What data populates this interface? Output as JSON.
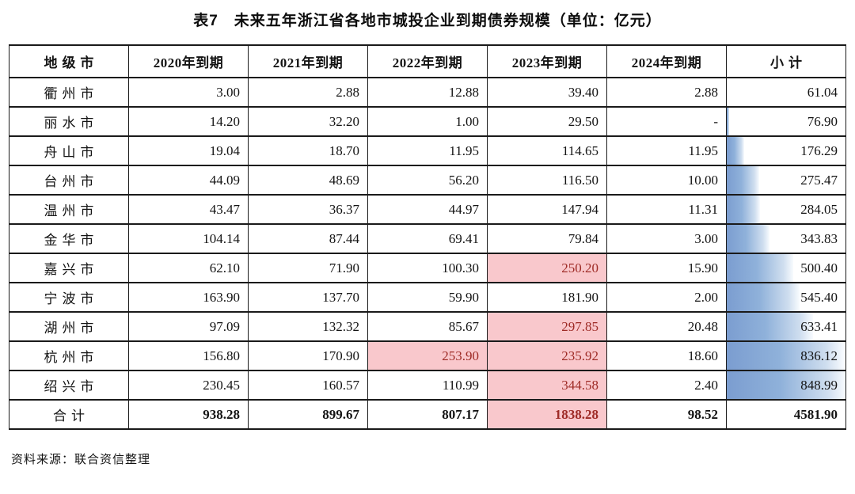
{
  "title": "表7　未来五年浙江省各地市城投企业到期债券规模（单位：亿元）",
  "source_note": "资料来源：联合资信整理",
  "colors": {
    "highlight_bg": "#f9c8cc",
    "highlight_text": "#9e2b26",
    "bar_gradient_start": "#7b9dd0",
    "bar_gradient_end": "#f8fbfe",
    "border": "#1a1a1a"
  },
  "table": {
    "columns": [
      "地级市",
      "2020年到期",
      "2021年到期",
      "2022年到期",
      "2023年到期",
      "2024年到期",
      "小计"
    ],
    "rows": [
      {
        "city": "衢州市",
        "values": [
          "3.00",
          "2.88",
          "12.88",
          "39.40",
          "2.88"
        ],
        "subtotal": "61.04",
        "subtotal_value": 61.04,
        "highlight_cols": []
      },
      {
        "city": "丽水市",
        "values": [
          "14.20",
          "32.20",
          "1.00",
          "29.50",
          "-"
        ],
        "subtotal": "76.90",
        "subtotal_value": 76.9,
        "highlight_cols": []
      },
      {
        "city": "舟山市",
        "values": [
          "19.04",
          "18.70",
          "11.95",
          "114.65",
          "11.95"
        ],
        "subtotal": "176.29",
        "subtotal_value": 176.29,
        "highlight_cols": []
      },
      {
        "city": "台州市",
        "values": [
          "44.09",
          "48.69",
          "56.20",
          "116.50",
          "10.00"
        ],
        "subtotal": "275.47",
        "subtotal_value": 275.47,
        "highlight_cols": []
      },
      {
        "city": "温州市",
        "values": [
          "43.47",
          "36.37",
          "44.97",
          "147.94",
          "11.31"
        ],
        "subtotal": "284.05",
        "subtotal_value": 284.05,
        "highlight_cols": []
      },
      {
        "city": "金华市",
        "values": [
          "104.14",
          "87.44",
          "69.41",
          "79.84",
          "3.00"
        ],
        "subtotal": "343.83",
        "subtotal_value": 343.83,
        "highlight_cols": []
      },
      {
        "city": "嘉兴市",
        "values": [
          "62.10",
          "71.90",
          "100.30",
          "250.20",
          "15.90"
        ],
        "subtotal": "500.40",
        "subtotal_value": 500.4,
        "highlight_cols": [
          3
        ]
      },
      {
        "city": "宁波市",
        "values": [
          "163.90",
          "137.70",
          "59.90",
          "181.90",
          "2.00"
        ],
        "subtotal": "545.40",
        "subtotal_value": 545.4,
        "highlight_cols": []
      },
      {
        "city": "湖州市",
        "values": [
          "97.09",
          "132.32",
          "85.67",
          "297.85",
          "20.48"
        ],
        "subtotal": "633.41",
        "subtotal_value": 633.41,
        "highlight_cols": [
          3
        ]
      },
      {
        "city": "杭州市",
        "values": [
          "156.80",
          "170.90",
          "253.90",
          "235.92",
          "18.60"
        ],
        "subtotal": "836.12",
        "subtotal_value": 836.12,
        "highlight_cols": [
          2,
          3
        ]
      },
      {
        "city": "绍兴市",
        "values": [
          "230.45",
          "160.57",
          "110.99",
          "344.58",
          "2.40"
        ],
        "subtotal": "848.99",
        "subtotal_value": 848.99,
        "highlight_cols": [
          3
        ]
      }
    ],
    "total": {
      "label": "合计",
      "values": [
        "938.28",
        "899.67",
        "807.17",
        "1838.28",
        "98.52"
      ],
      "subtotal": "4581.90",
      "highlight_cols": [
        3
      ]
    }
  }
}
